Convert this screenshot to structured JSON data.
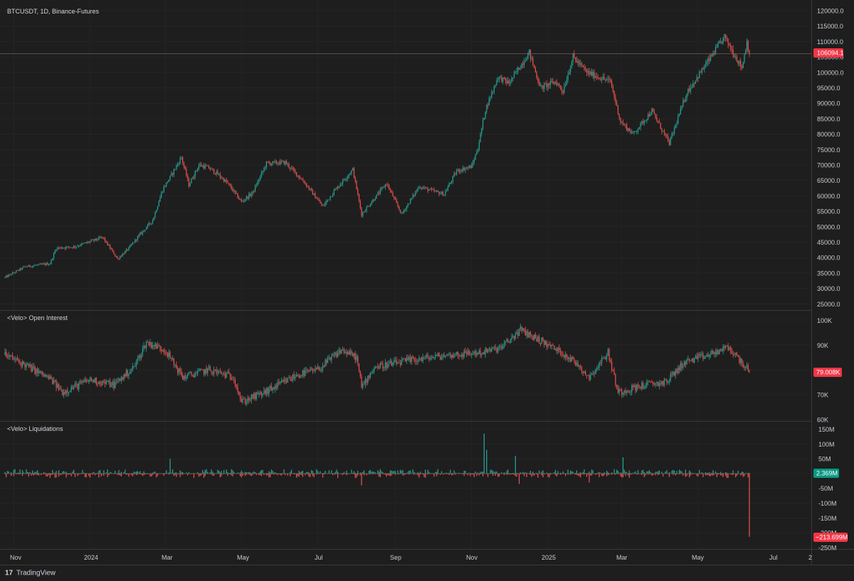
{
  "header": {
    "title": "BTCUSDT, 1D, Binance-Futures"
  },
  "panes": {
    "oi_title": "<Velo> Open Interest",
    "liq_title": "<Velo> Liquidations"
  },
  "price_axis": {
    "ticks": [
      "120000.0",
      "115000.0",
      "110000.0",
      "105000.0",
      "100000.0",
      "95000.0",
      "90000.0",
      "85000.0",
      "80000.0",
      "75000.0",
      "70000.0",
      "65000.0",
      "60000.0",
      "55000.0",
      "50000.0",
      "45000.0",
      "40000.0",
      "35000.0",
      "30000.0",
      "25000.0"
    ],
    "last": "106094.1"
  },
  "oi_axis": {
    "ticks": [
      "100K",
      "90K",
      "80K",
      "70K",
      "60K"
    ],
    "last": "79.008K"
  },
  "liq_axis": {
    "ticks": [
      "150M",
      "100M",
      "50M",
      "-50M",
      "-100M",
      "-150M",
      "-200M",
      "-250M"
    ],
    "last_pos": "2.369M",
    "last_neg": "−213.699M"
  },
  "time_axis": [
    "Nov",
    "2024",
    "Mar",
    "May",
    "Jul",
    "Sep",
    "Nov",
    "2025",
    "Mar",
    "May",
    "Jul",
    "2"
  ],
  "brand": {
    "logo_text": "17",
    "name": "TradingView"
  },
  "colors": {
    "up": "#26a69a",
    "down": "#ef5350",
    "bg": "#1e1e1e",
    "grid": "#2a2a2a",
    "tag_red": "#f23645",
    "tag_green": "#089981"
  },
  "chart_data": [
    {
      "type": "candlestick",
      "title": "BTCUSDT, 1D, Binance-Futures",
      "x_range": [
        "2023-10-25",
        "2025-06-11"
      ],
      "ylim": [
        25000,
        120000
      ],
      "anchors": [
        {
          "x": "2023-10-25",
          "y": 33500
        },
        {
          "x": "2023-11-10",
          "y": 37000
        },
        {
          "x": "2023-11-30",
          "y": 38000
        },
        {
          "x": "2023-12-05",
          "y": 43000
        },
        {
          "x": "2023-12-20",
          "y": 43500
        },
        {
          "x": "2024-01-11",
          "y": 46500
        },
        {
          "x": "2024-01-23",
          "y": 39500
        },
        {
          "x": "2024-02-01",
          "y": 43000
        },
        {
          "x": "2024-02-10",
          "y": 47500
        },
        {
          "x": "2024-02-20",
          "y": 52000
        },
        {
          "x": "2024-02-28",
          "y": 62000
        },
        {
          "x": "2024-03-05",
          "y": 66000
        },
        {
          "x": "2024-03-14",
          "y": 72500
        },
        {
          "x": "2024-03-20",
          "y": 63500
        },
        {
          "x": "2024-03-28",
          "y": 70000
        },
        {
          "x": "2024-04-05",
          "y": 69000
        },
        {
          "x": "2024-04-12",
          "y": 67000
        },
        {
          "x": "2024-04-20",
          "y": 64000
        },
        {
          "x": "2024-05-01",
          "y": 58000
        },
        {
          "x": "2024-05-10",
          "y": 61000
        },
        {
          "x": "2024-05-21",
          "y": 70500
        },
        {
          "x": "2024-06-05",
          "y": 70800
        },
        {
          "x": "2024-06-20",
          "y": 64500
        },
        {
          "x": "2024-07-05",
          "y": 56500
        },
        {
          "x": "2024-07-15",
          "y": 62000
        },
        {
          "x": "2024-07-29",
          "y": 68500
        },
        {
          "x": "2024-08-05",
          "y": 54000
        },
        {
          "x": "2024-08-15",
          "y": 59000
        },
        {
          "x": "2024-08-25",
          "y": 64000
        },
        {
          "x": "2024-09-06",
          "y": 54000
        },
        {
          "x": "2024-09-20",
          "y": 63000
        },
        {
          "x": "2024-10-01",
          "y": 61500
        },
        {
          "x": "2024-10-10",
          "y": 60500
        },
        {
          "x": "2024-10-20",
          "y": 68000
        },
        {
          "x": "2024-11-01",
          "y": 69500
        },
        {
          "x": "2024-11-06",
          "y": 75500
        },
        {
          "x": "2024-11-12",
          "y": 88000
        },
        {
          "x": "2024-11-22",
          "y": 98500
        },
        {
          "x": "2024-12-01",
          "y": 96500
        },
        {
          "x": "2024-12-17",
          "y": 106500
        },
        {
          "x": "2024-12-26",
          "y": 95000
        },
        {
          "x": "2025-01-07",
          "y": 97000
        },
        {
          "x": "2025-01-13",
          "y": 94000
        },
        {
          "x": "2025-01-21",
          "y": 105000
        },
        {
          "x": "2025-02-01",
          "y": 100000
        },
        {
          "x": "2025-02-20",
          "y": 97000
        },
        {
          "x": "2025-02-28",
          "y": 84000
        },
        {
          "x": "2025-03-10",
          "y": 80000
        },
        {
          "x": "2025-03-25",
          "y": 87500
        },
        {
          "x": "2025-04-08",
          "y": 77000
        },
        {
          "x": "2025-04-22",
          "y": 93500
        },
        {
          "x": "2025-05-08",
          "y": 103000
        },
        {
          "x": "2025-05-22",
          "y": 111500
        },
        {
          "x": "2025-06-05",
          "y": 101500
        },
        {
          "x": "2025-06-09",
          "y": 110000
        },
        {
          "x": "2025-06-11",
          "y": 106094.1
        }
      ],
      "last_value": 106094.1
    },
    {
      "type": "candlestick",
      "title": "<Velo> Open Interest",
      "ylim": [
        60000,
        102000
      ],
      "anchors": [
        {
          "x": "2023-10-25",
          "y": 86000
        },
        {
          "x": "2023-11-10",
          "y": 82000
        },
        {
          "x": "2023-12-01",
          "y": 76000
        },
        {
          "x": "2023-12-10",
          "y": 71000
        },
        {
          "x": "2024-01-01",
          "y": 76000
        },
        {
          "x": "2024-01-20",
          "y": 74000
        },
        {
          "x": "2024-02-05",
          "y": 81000
        },
        {
          "x": "2024-02-15",
          "y": 91000
        },
        {
          "x": "2024-03-01",
          "y": 88000
        },
        {
          "x": "2024-03-15",
          "y": 77000
        },
        {
          "x": "2024-04-05",
          "y": 80000
        },
        {
          "x": "2024-04-25",
          "y": 77000
        },
        {
          "x": "2024-05-01",
          "y": 67000
        },
        {
          "x": "2024-05-20",
          "y": 71000
        },
        {
          "x": "2024-06-15",
          "y": 78000
        },
        {
          "x": "2024-07-01",
          "y": 80000
        },
        {
          "x": "2024-07-20",
          "y": 88000
        },
        {
          "x": "2024-08-01",
          "y": 85000
        },
        {
          "x": "2024-08-05",
          "y": 73000
        },
        {
          "x": "2024-08-15",
          "y": 81000
        },
        {
          "x": "2024-09-15",
          "y": 84000
        },
        {
          "x": "2024-10-15",
          "y": 86000
        },
        {
          "x": "2024-11-10",
          "y": 87000
        },
        {
          "x": "2024-11-25",
          "y": 89000
        },
        {
          "x": "2024-12-10",
          "y": 96000
        },
        {
          "x": "2024-12-25",
          "y": 92000
        },
        {
          "x": "2025-01-15",
          "y": 86000
        },
        {
          "x": "2025-01-25",
          "y": 82000
        },
        {
          "x": "2025-02-03",
          "y": 77000
        },
        {
          "x": "2025-02-18",
          "y": 87000
        },
        {
          "x": "2025-02-26",
          "y": 71000
        },
        {
          "x": "2025-03-20",
          "y": 74000
        },
        {
          "x": "2025-04-05",
          "y": 75000
        },
        {
          "x": "2025-04-20",
          "y": 83000
        },
        {
          "x": "2025-05-10",
          "y": 86000
        },
        {
          "x": "2025-05-25",
          "y": 89000
        },
        {
          "x": "2025-06-05",
          "y": 83000
        },
        {
          "x": "2025-06-11",
          "y": 79008
        }
      ],
      "last_value": 79008
    },
    {
      "type": "bar",
      "title": "<Velo> Liquidations",
      "ylim": [
        -250000000,
        150000000
      ],
      "notable_bars": [
        {
          "x": "2024-03-05",
          "y": 50000000
        },
        {
          "x": "2024-08-05",
          "y": -40000000
        },
        {
          "x": "2024-11-11",
          "y": 135000000
        },
        {
          "x": "2024-11-13",
          "y": 80000000
        },
        {
          "x": "2024-12-06",
          "y": 60000000
        },
        {
          "x": "2024-12-09",
          "y": -35000000
        },
        {
          "x": "2025-02-03",
          "y": -30000000
        },
        {
          "x": "2025-03-02",
          "y": 55000000
        },
        {
          "x": "2025-06-11",
          "y": -213699000
        }
      ],
      "last_values": [
        2369000,
        -213699000
      ]
    }
  ]
}
